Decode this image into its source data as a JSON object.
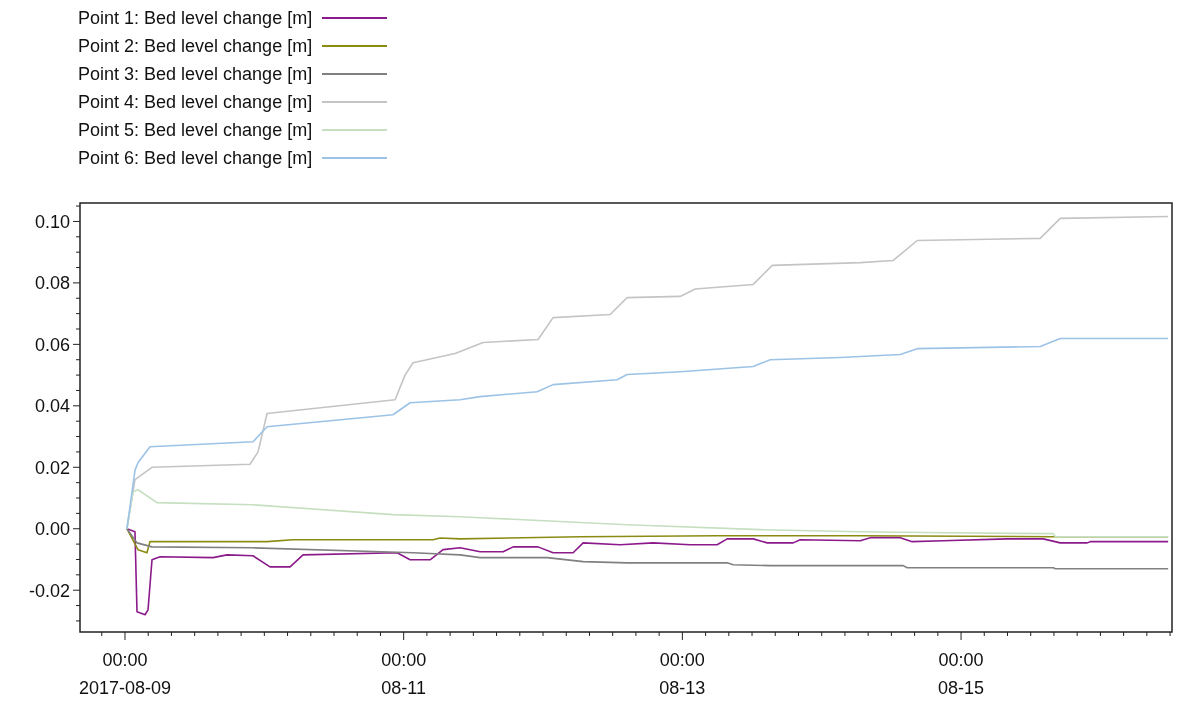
{
  "chart_data": {
    "type": "line",
    "legend": "top left",
    "grid": false,
    "marker": "none",
    "line_style": "solid",
    "xlim": [
      "2017-08-08T16:15",
      "2017-08-16T12:20"
    ],
    "xticks": [
      {
        "value": "2017-08-08T20:00",
        "label": null
      },
      {
        "value": "2017-08-09T00:00",
        "label": "00:00\n2017-08-09"
      },
      {
        "value": "2017-08-09T04:00",
        "label": null
      },
      {
        "value": "2017-08-09T08:00",
        "label": null
      },
      {
        "value": "2017-08-09T12:00",
        "label": null
      },
      {
        "value": "2017-08-09T16:00",
        "label": null
      },
      {
        "value": "2017-08-09T20:00",
        "label": null
      },
      {
        "value": "2017-08-10T00:00",
        "label": null
      },
      {
        "value": "2017-08-10T04:00",
        "label": null
      },
      {
        "value": "2017-08-10T08:00",
        "label": null
      },
      {
        "value": "2017-08-10T12:00",
        "label": null
      },
      {
        "value": "2017-08-10T16:00",
        "label": null
      },
      {
        "value": "2017-08-10T20:00",
        "label": null
      },
      {
        "value": "2017-08-11T00:00",
        "label": "00:00\n08-11"
      },
      {
        "value": "2017-08-11T04:00",
        "label": null
      },
      {
        "value": "2017-08-11T08:00",
        "label": null
      },
      {
        "value": "2017-08-11T12:00",
        "label": null
      },
      {
        "value": "2017-08-11T16:00",
        "label": null
      },
      {
        "value": "2017-08-11T20:00",
        "label": null
      },
      {
        "value": "2017-08-12T00:00",
        "label": null
      },
      {
        "value": "2017-08-12T04:00",
        "label": null
      },
      {
        "value": "2017-08-12T08:00",
        "label": null
      },
      {
        "value": "2017-08-12T12:00",
        "label": null
      },
      {
        "value": "2017-08-12T16:00",
        "label": null
      },
      {
        "value": "2017-08-12T20:00",
        "label": null
      },
      {
        "value": "2017-08-13T00:00",
        "label": "00:00\n08-13"
      },
      {
        "value": "2017-08-13T04:00",
        "label": null
      },
      {
        "value": "2017-08-13T08:00",
        "label": null
      },
      {
        "value": "2017-08-13T12:00",
        "label": null
      },
      {
        "value": "2017-08-13T16:00",
        "label": null
      },
      {
        "value": "2017-08-13T20:00",
        "label": null
      },
      {
        "value": "2017-08-14T00:00",
        "label": null
      },
      {
        "value": "2017-08-14T04:00",
        "label": null
      },
      {
        "value": "2017-08-14T08:00",
        "label": null
      },
      {
        "value": "2017-08-14T12:00",
        "label": null
      },
      {
        "value": "2017-08-14T16:00",
        "label": null
      },
      {
        "value": "2017-08-14T20:00",
        "label": null
      },
      {
        "value": "2017-08-15T00:00",
        "label": "00:00\n08-15"
      },
      {
        "value": "2017-08-15T04:00",
        "label": null
      },
      {
        "value": "2017-08-15T08:00",
        "label": null
      },
      {
        "value": "2017-08-15T12:00",
        "label": null
      },
      {
        "value": "2017-08-15T16:00",
        "label": null
      },
      {
        "value": "2017-08-15T20:00",
        "label": null
      },
      {
        "value": "2017-08-16T00:00",
        "label": null
      },
      {
        "value": "2017-08-16T04:00",
        "label": null
      },
      {
        "value": "2017-08-16T08:00",
        "label": null
      },
      {
        "value": "2017-08-16T12:00",
        "label": null
      }
    ],
    "ylim": [
      -0.0336,
      0.106
    ],
    "yticks": [
      {
        "value": -0.03,
        "label": null
      },
      {
        "value": -0.025,
        "label": null
      },
      {
        "value": -0.02,
        "label": "-0.02"
      },
      {
        "value": -0.015,
        "label": null
      },
      {
        "value": -0.01,
        "label": null
      },
      {
        "value": -0.005,
        "label": null
      },
      {
        "value": 0,
        "label": "0.00"
      },
      {
        "value": 0.005,
        "label": null
      },
      {
        "value": 0.01,
        "label": null
      },
      {
        "value": 0.015,
        "label": null
      },
      {
        "value": 0.02,
        "label": "0.02"
      },
      {
        "value": 0.025,
        "label": null
      },
      {
        "value": 0.03,
        "label": null
      },
      {
        "value": 0.035,
        "label": null
      },
      {
        "value": 0.04,
        "label": "0.04"
      },
      {
        "value": 0.045,
        "label": null
      },
      {
        "value": 0.05,
        "label": null
      },
      {
        "value": 0.055,
        "label": null
      },
      {
        "value": 0.06,
        "label": "0.06"
      },
      {
        "value": 0.065,
        "label": null
      },
      {
        "value": 0.07,
        "label": null
      },
      {
        "value": 0.075,
        "label": null
      },
      {
        "value": 0.08,
        "label": "0.08"
      },
      {
        "value": 0.085,
        "label": null
      },
      {
        "value": 0.09,
        "label": null
      },
      {
        "value": 0.095,
        "label": null
      },
      {
        "value": 0.1,
        "label": "0.10"
      },
      {
        "value": 0.105,
        "label": null
      }
    ],
    "series": [
      {
        "name": "Point 1: Bed level change [m]",
        "color": "#8b1a8b",
        "x": [
          "2017-08-09T00:20",
          "2017-08-09T01:43",
          "2017-08-09T02:04",
          "2017-08-09T03:27",
          "2017-08-09T03:58",
          "2017-08-09T04:39",
          "2017-08-09T06:02",
          "2017-08-09T15:10",
          "2017-08-09T17:34",
          "2017-08-09T22:03",
          "2017-08-10T00:59",
          "2017-08-10T04:26",
          "2017-08-10T06:40",
          "2017-08-10T22:52",
          "2017-08-11T01:06",
          "2017-08-11T04:33",
          "2017-08-11T06:47",
          "2017-08-11T09:43",
          "2017-08-11T13:10",
          "2017-08-11T17:08",
          "2017-08-11T18:51",
          "2017-08-11T23:09",
          "2017-08-12T01:44",
          "2017-08-12T05:11",
          "2017-08-12T06:55",
          "2017-08-12T13:17",
          "2017-08-12T18:58",
          "2017-08-13T01:20",
          "2017-08-13T05:59",
          "2017-08-13T07:43",
          "2017-08-13T12:12",
          "2017-08-13T14:37",
          "2017-08-13T19:05",
          "2017-08-13T20:18",
          "2017-08-14T06:38",
          "2017-08-14T08:22",
          "2017-08-14T13:32",
          "2017-08-14T15:35",
          "2017-08-14T20:56",
          "2017-08-15T07:58",
          "2017-08-15T14:10",
          "2017-08-15T17:05",
          "2017-08-15T21:44",
          "2017-08-15T22:16",
          "2017-08-16T11:40"
        ],
        "values": [
          0,
          -0.001,
          -0.027,
          -0.028,
          -0.0264,
          -0.0101,
          -0.0091,
          -0.0094,
          -0.0085,
          -0.0088,
          -0.0124,
          -0.0124,
          -0.0085,
          -0.0078,
          -0.0101,
          -0.0101,
          -0.0068,
          -0.0062,
          -0.0075,
          -0.0075,
          -0.0059,
          -0.0059,
          -0.0078,
          -0.0078,
          -0.0046,
          -0.0052,
          -0.0046,
          -0.0052,
          -0.0052,
          -0.0033,
          -0.0033,
          -0.0046,
          -0.0046,
          -0.0036,
          -0.0039,
          -0.0029,
          -0.0029,
          -0.0042,
          -0.0039,
          -0.0033,
          -0.0033,
          -0.0046,
          -0.0046,
          -0.0042,
          -0.0042
        ]
      },
      {
        "name": "Point 2: Bed level change [m]",
        "color": "#8b8b14",
        "x": [
          "2017-08-09T00:20",
          "2017-08-09T02:14",
          "2017-08-09T03:47",
          "2017-08-09T04:18",
          "2017-08-10T00:28",
          "2017-08-10T04:57",
          "2017-08-11T05:04",
          "2017-08-11T06:16",
          "2017-08-11T09:43",
          "2017-08-12T06:24",
          "2017-08-13T05:59",
          "2017-08-14T06:38",
          "2017-08-15T15:53",
          "2017-08-16T11:40"
        ],
        "values": [
          0,
          -0.0068,
          -0.0078,
          -0.0042,
          -0.0042,
          -0.0036,
          -0.0036,
          -0.003,
          -0.0033,
          -0.0026,
          -0.0023,
          -0.0023,
          -0.0026,
          -0.0026
        ]
      },
      {
        "name": "Point 3: Bed level change [m]",
        "color": "#808080",
        "x": [
          "2017-08-09T00:20",
          "2017-08-09T02:04",
          "2017-08-09T04:39",
          "2017-08-09T22:03",
          "2017-08-11T01:37",
          "2017-08-11T09:43",
          "2017-08-11T13:10",
          "2017-08-12T00:42",
          "2017-08-12T06:55",
          "2017-08-12T14:29",
          "2017-08-13T07:43",
          "2017-08-13T08:45",
          "2017-08-13T15:08",
          "2017-08-14T13:32",
          "2017-08-14T14:02",
          "2017-08-14T14:44",
          "2017-08-15T15:53",
          "2017-08-15T16:14",
          "2017-08-16T11:40"
        ],
        "values": [
          0,
          -0.0046,
          -0.0059,
          -0.0062,
          -0.0078,
          -0.0085,
          -0.0094,
          -0.0094,
          -0.0107,
          -0.0111,
          -0.0111,
          -0.0117,
          -0.012,
          -0.012,
          -0.012,
          -0.0127,
          -0.0127,
          -0.013,
          -0.013
        ]
      },
      {
        "name": "Point 4: Bed level change [m]",
        "color": "#c4c4c4",
        "x": [
          "2017-08-09T00:20",
          "2017-08-09T01:43",
          "2017-08-09T04:39",
          "2017-08-09T21:32",
          "2017-08-09T22:55",
          "2017-08-10T00:28",
          "2017-08-10T22:31",
          "2017-08-11T00:14",
          "2017-08-11T01:37",
          "2017-08-11T08:51",
          "2017-08-11T13:41",
          "2017-08-11T23:09",
          "2017-08-12T01:44",
          "2017-08-12T11:34",
          "2017-08-12T14:29",
          "2017-08-12T23:37",
          "2017-08-13T02:12",
          "2017-08-13T12:12",
          "2017-08-13T15:28",
          "2017-08-14T06:38",
          "2017-08-14T12:19",
          "2017-08-14T16:27",
          "2017-08-15T13:38",
          "2017-08-15T17:05",
          "2017-08-16T11:40"
        ],
        "values": [
          0,
          0.016,
          0.02,
          0.021,
          0.025,
          0.0375,
          0.042,
          0.05,
          0.054,
          0.057,
          0.0606,
          0.0616,
          0.0687,
          0.0697,
          0.0752,
          0.0756,
          0.078,
          0.0795,
          0.0857,
          0.0866,
          0.0873,
          0.0938,
          0.0945,
          0.101,
          0.1016
        ]
      },
      {
        "name": "Point 5: Bed level change [m]",
        "color": "#c5dfc0",
        "x": [
          "2017-08-09T00:20",
          "2017-08-09T01:23",
          "2017-08-09T02:14",
          "2017-08-09T05:31",
          "2017-08-09T22:03",
          "2017-08-10T22:10",
          "2017-08-11T09:43",
          "2017-08-11T13:10",
          "2017-08-12T14:29",
          "2017-08-13T13:24",
          "2017-08-14T06:38",
          "2017-08-14T21:37",
          "2017-08-15T15:53",
          "2017-08-15T16:14",
          "2017-08-16T11:40"
        ],
        "values": [
          0,
          0.012,
          0.0127,
          0.0085,
          0.0078,
          0.0046,
          0.0039,
          0.0036,
          0.0013,
          -0.0003,
          -0.001,
          -0.0013,
          -0.0016,
          -0.0026,
          -0.0026
        ]
      },
      {
        "name": "Point 6: Bed level change [m]",
        "color": "#9cc3e6",
        "x": [
          "2017-08-09T00:20",
          "2017-08-09T01:43",
          "2017-08-09T02:14",
          "2017-08-09T04:18",
          "2017-08-09T22:03",
          "2017-08-10T00:28",
          "2017-08-10T22:10",
          "2017-08-11T01:06",
          "2017-08-11T09:43",
          "2017-08-11T13:10",
          "2017-08-11T22:59",
          "2017-08-12T01:44",
          "2017-08-12T12:46",
          "2017-08-12T14:29",
          "2017-08-12T23:37",
          "2017-08-13T12:12",
          "2017-08-13T15:08",
          "2017-08-14T03:11",
          "2017-08-14T13:32",
          "2017-08-14T16:27",
          "2017-08-15T13:38",
          "2017-08-15T17:05",
          "2017-08-16T11:40"
        ],
        "values": [
          0,
          0.019,
          0.0215,
          0.0267,
          0.0283,
          0.0332,
          0.0371,
          0.041,
          0.042,
          0.043,
          0.0446,
          0.0469,
          0.0485,
          0.0502,
          0.0511,
          0.0528,
          0.055,
          0.0557,
          0.0567,
          0.0586,
          0.0593,
          0.0619,
          0.0619
        ]
      }
    ]
  }
}
